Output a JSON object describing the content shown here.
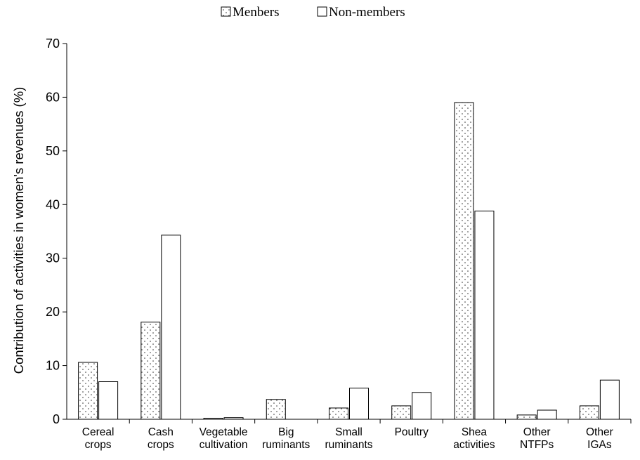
{
  "chart_data": {
    "type": "bar",
    "title": "",
    "xlabel": "",
    "ylabel": "Contribution of activities in women's revenues (%)",
    "ylim": [
      0,
      70
    ],
    "yticks": [
      0,
      10,
      20,
      30,
      40,
      50,
      60,
      70
    ],
    "grid": false,
    "legend_position": "top-center",
    "categories": [
      [
        "Cereal",
        "crops"
      ],
      [
        "Cash",
        "crops"
      ],
      [
        "Vegetable",
        "cultivation"
      ],
      [
        "Big",
        "ruminants"
      ],
      [
        "Small",
        "ruminants"
      ],
      [
        "Poultry"
      ],
      [
        "Shea",
        "activities"
      ],
      [
        "Other",
        "NTFPs"
      ],
      [
        "Other",
        "IGAs"
      ]
    ],
    "series": [
      {
        "name": "Menbers",
        "pattern": "dotted",
        "values": [
          10.6,
          18.1,
          0.2,
          3.7,
          2.1,
          2.5,
          59.0,
          0.8,
          2.5
        ]
      },
      {
        "name": "Non-members",
        "pattern": "none",
        "values": [
          7.0,
          34.3,
          0.3,
          0.0,
          5.8,
          5.0,
          38.8,
          1.7,
          7.3
        ]
      }
    ]
  }
}
